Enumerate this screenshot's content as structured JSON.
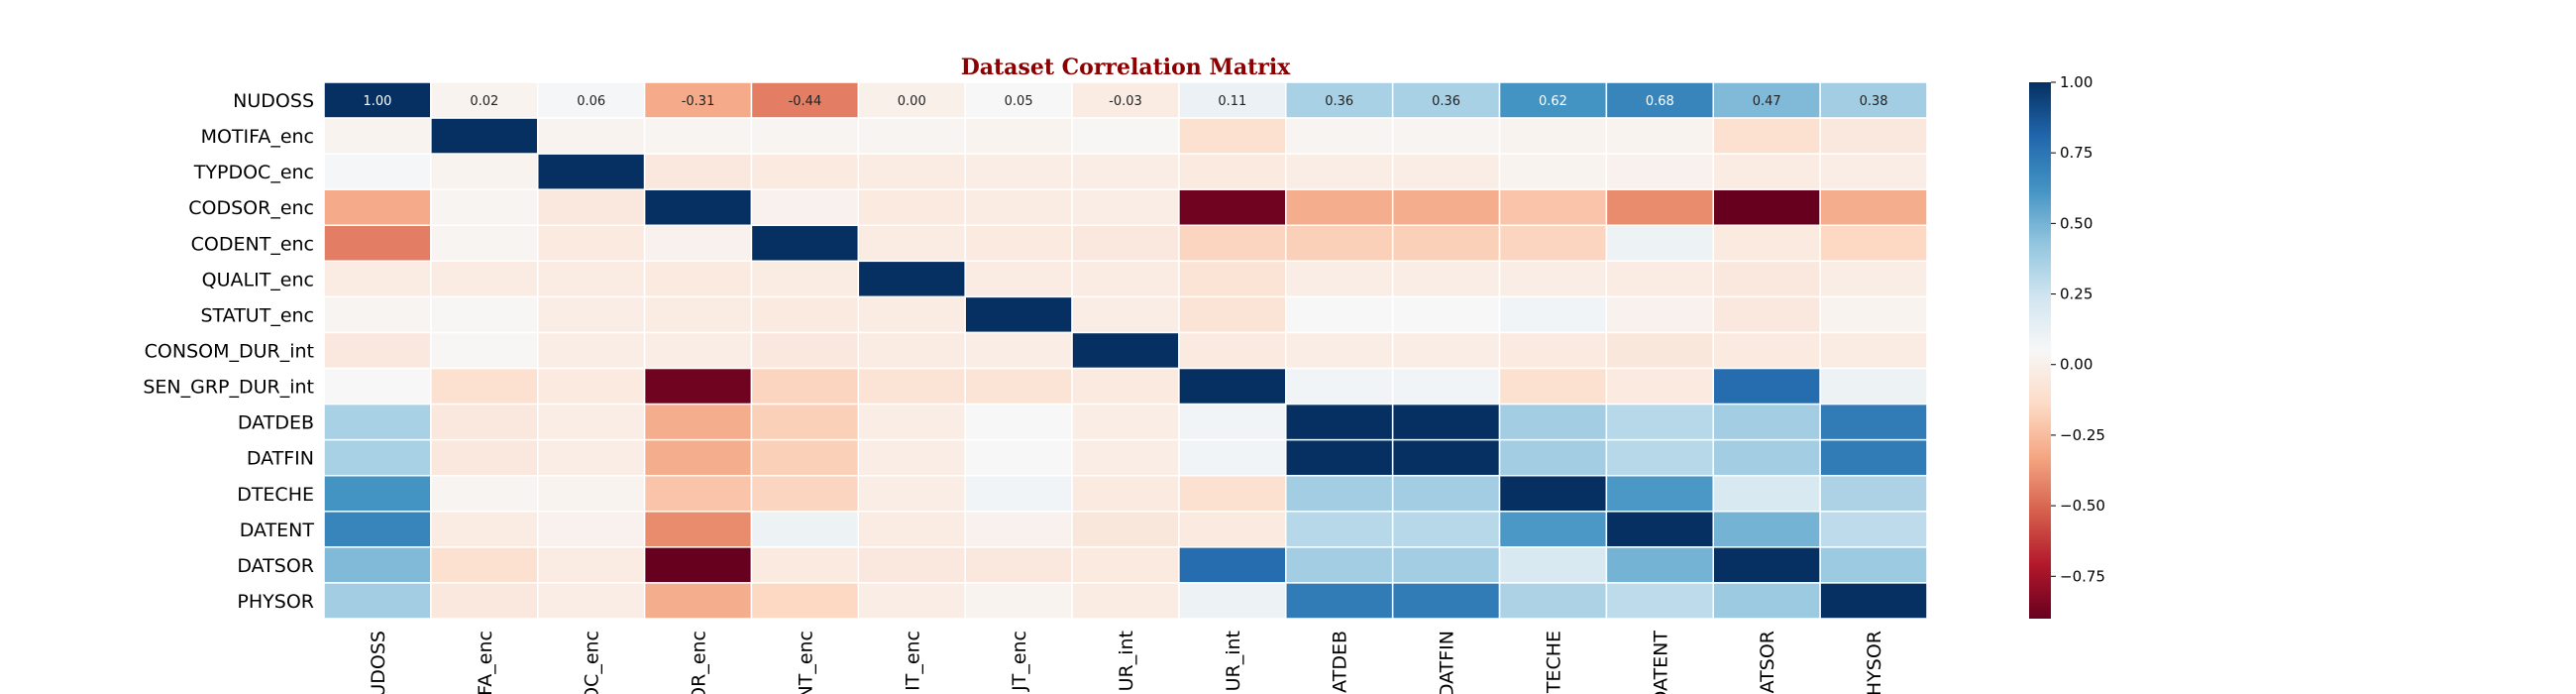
{
  "chart_data": {
    "type": "heatmap",
    "title": "Dataset Correlation Matrix",
    "labels": [
      "NUDOSS",
      "MOTIFA_enc",
      "TYPDOC_enc",
      "CODSOR_enc",
      "CODENT_enc",
      "QUALIT_enc",
      "STATUT_enc",
      "CONSOM_DUR_int",
      "SEN_GRP_DUR_int",
      "DATDEB",
      "DATFIN",
      "DTECHE",
      "DATENT",
      "DATSOR",
      "PHYSOR"
    ],
    "x_tick_labels_visible": [
      "UDOSS",
      "FA_enc",
      "OC_enc",
      "OR_enc",
      "NT_enc",
      "IT_enc",
      "JT_enc",
      "UR_int",
      "UR_int",
      "ATDEB",
      "DATFIN",
      "TECHE",
      "DATENT",
      "ATSOR",
      "HYSOR"
    ],
    "matrix": [
      [
        1.0,
        0.02,
        0.06,
        -0.31,
        -0.44,
        0.0,
        0.05,
        -0.03,
        0.11,
        0.36,
        0.36,
        0.62,
        0.68,
        0.47,
        0.38
      ],
      [
        0.02,
        1.0,
        0.02,
        0.03,
        0.03,
        0.03,
        0.02,
        0.04,
        -0.1,
        0.03,
        0.03,
        0.02,
        0.02,
        -0.1,
        -0.05
      ],
      [
        0.06,
        0.02,
        1.0,
        -0.05,
        -0.04,
        -0.03,
        -0.02,
        -0.02,
        -0.04,
        -0.02,
        -0.02,
        0.02,
        0.01,
        -0.03,
        -0.02
      ],
      [
        -0.31,
        0.03,
        -0.05,
        1.0,
        0.01,
        -0.04,
        -0.03,
        -0.02,
        -0.88,
        -0.3,
        -0.3,
        -0.22,
        -0.4,
        -0.9,
        -0.3
      ],
      [
        -0.44,
        0.03,
        -0.04,
        0.01,
        1.0,
        -0.03,
        -0.04,
        -0.05,
        -0.16,
        -0.18,
        -0.18,
        -0.16,
        0.1,
        -0.04,
        -0.15
      ],
      [
        -0.03,
        -0.03,
        -0.03,
        -0.04,
        -0.03,
        1.0,
        -0.03,
        -0.03,
        -0.08,
        -0.02,
        -0.02,
        -0.02,
        -0.03,
        -0.05,
        -0.02
      ],
      [
        0.03,
        0.04,
        -0.02,
        -0.03,
        -0.04,
        -0.03,
        1.0,
        -0.02,
        -0.08,
        0.05,
        0.05,
        0.08,
        0.01,
        -0.05,
        0.02
      ],
      [
        -0.05,
        0.04,
        -0.02,
        -0.02,
        -0.05,
        -0.03,
        -0.02,
        1.0,
        -0.04,
        -0.02,
        -0.02,
        -0.04,
        -0.06,
        -0.04,
        -0.03
      ],
      [
        0.05,
        -0.1,
        -0.04,
        -0.88,
        -0.16,
        -0.08,
        -0.08,
        -0.04,
        1.0,
        0.08,
        0.08,
        -0.1,
        -0.04,
        0.78,
        0.1
      ],
      [
        0.36,
        -0.05,
        -0.02,
        -0.3,
        -0.18,
        -0.02,
        0.05,
        -0.02,
        0.08,
        1.0,
        1.0,
        0.38,
        0.32,
        0.38,
        0.72
      ],
      [
        0.36,
        -0.05,
        -0.02,
        -0.3,
        -0.18,
        -0.02,
        0.05,
        -0.02,
        0.08,
        1.0,
        1.0,
        0.38,
        0.32,
        0.38,
        0.72
      ],
      [
        0.62,
        0.03,
        0.02,
        -0.22,
        -0.16,
        -0.02,
        0.08,
        -0.04,
        -0.1,
        0.38,
        0.38,
        1.0,
        0.6,
        0.2,
        0.35
      ],
      [
        0.68,
        -0.03,
        0.01,
        -0.4,
        0.1,
        -0.03,
        0.01,
        -0.06,
        -0.04,
        0.32,
        0.32,
        0.6,
        1.0,
        0.5,
        0.3
      ],
      [
        0.47,
        -0.1,
        -0.03,
        -0.9,
        -0.04,
        -0.05,
        -0.05,
        -0.04,
        0.78,
        0.38,
        0.38,
        0.2,
        0.5,
        1.0,
        0.4
      ],
      [
        0.38,
        -0.05,
        -0.02,
        -0.3,
        -0.15,
        -0.02,
        0.02,
        -0.03,
        0.1,
        0.72,
        0.72,
        0.35,
        0.3,
        0.4,
        1.0
      ]
    ],
    "annotated_row": 0,
    "annotations": [
      "1.00",
      "0.02",
      "0.06",
      "-0.31",
      "-0.44",
      "0.00",
      "0.05",
      "-0.03",
      "0.11",
      "0.36",
      "0.36",
      "0.62",
      "0.68",
      "0.47",
      "0.38"
    ],
    "colormap": "RdBu",
    "vmin": -0.9,
    "vmax": 1.0,
    "colorbar_ticks": [
      1.0,
      0.75,
      0.5,
      0.25,
      0.0,
      -0.25,
      -0.5,
      -0.75
    ],
    "colorbar_tick_labels": [
      "1.00",
      "0.75",
      "0.50",
      "0.25",
      "0.00",
      "−0.25",
      "−0.50",
      "−0.75"
    ],
    "grid": true
  }
}
